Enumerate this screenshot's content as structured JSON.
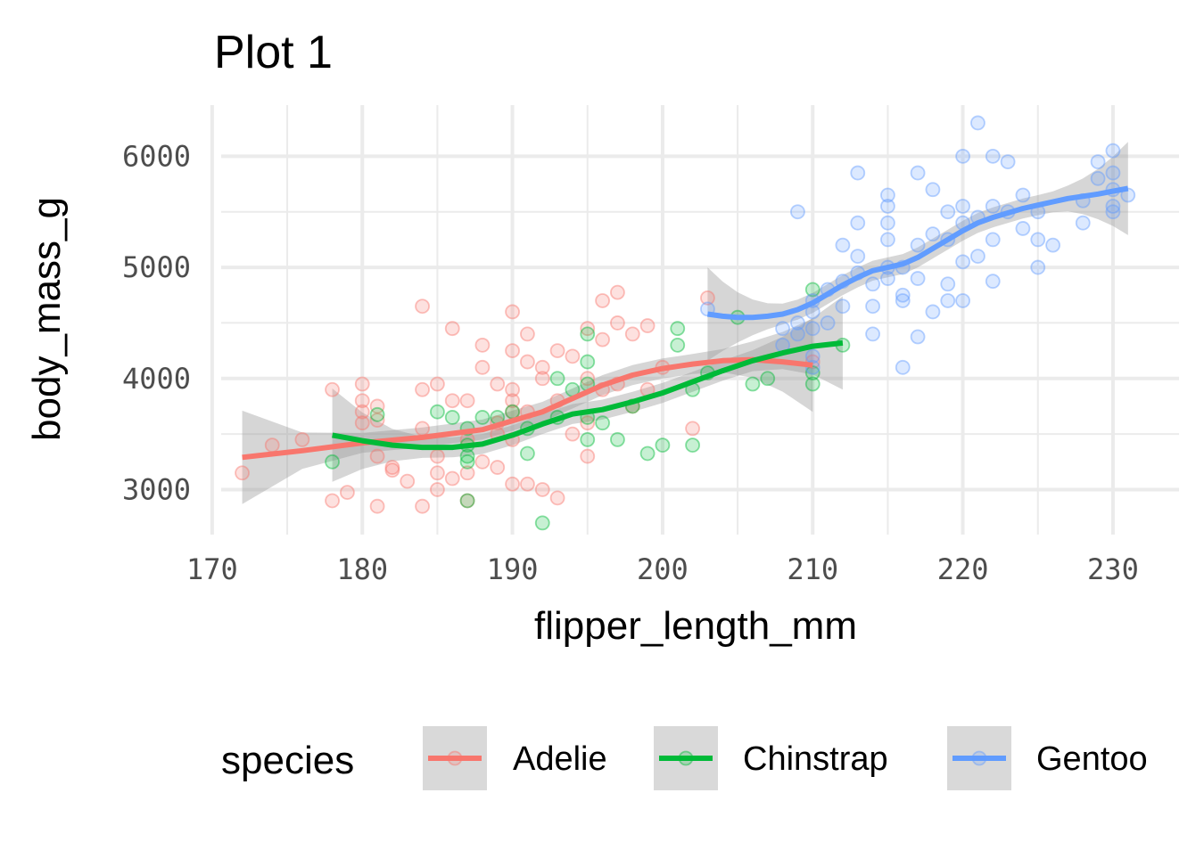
{
  "chart_data": {
    "type": "scatter",
    "title": "Plot 1",
    "xlabel": "flipper_length_mm",
    "ylabel": "body_mass_g",
    "xlim": [
      170.6,
      234.4
    ],
    "ylim": [
      2595,
      6460
    ],
    "x_ticks": [
      "170",
      "180",
      "190",
      "200",
      "210",
      "220",
      "230"
    ],
    "y_ticks": [
      "3000",
      "4000",
      "5000",
      "6000"
    ],
    "grid": true,
    "legend": {
      "title": "species",
      "position": "bottom"
    },
    "series": [
      {
        "name": "Adelie",
        "color": "#f8766d",
        "points": [
          [
            172,
            3150
          ],
          [
            174,
            3400
          ],
          [
            176,
            3450
          ],
          [
            178,
            3900
          ],
          [
            178,
            2900
          ],
          [
            179,
            2975
          ],
          [
            180,
            3950
          ],
          [
            180,
            3800
          ],
          [
            180,
            3600
          ],
          [
            180,
            3700
          ],
          [
            181,
            2850
          ],
          [
            181,
            3300
          ],
          [
            181,
            3625
          ],
          [
            181,
            3750
          ],
          [
            182,
            3200
          ],
          [
            182,
            3175
          ],
          [
            183,
            3075
          ],
          [
            184,
            4650
          ],
          [
            184,
            3900
          ],
          [
            184,
            3550
          ],
          [
            184,
            2850
          ],
          [
            185,
            3950
          ],
          [
            185,
            3300
          ],
          [
            185,
            3150
          ],
          [
            185,
            3000
          ],
          [
            186,
            4450
          ],
          [
            186,
            3800
          ],
          [
            186,
            3100
          ],
          [
            187,
            3800
          ],
          [
            187,
            3450
          ],
          [
            187,
            3150
          ],
          [
            187,
            2900
          ],
          [
            188,
            4300
          ],
          [
            188,
            4100
          ],
          [
            188,
            3250
          ],
          [
            189,
            3950
          ],
          [
            189,
            3600
          ],
          [
            189,
            3500
          ],
          [
            189,
            3200
          ],
          [
            190,
            4600
          ],
          [
            190,
            4250
          ],
          [
            190,
            3900
          ],
          [
            190,
            3800
          ],
          [
            190,
            3700
          ],
          [
            190,
            3450
          ],
          [
            190,
            3050
          ],
          [
            191,
            4400
          ],
          [
            191,
            4150
          ],
          [
            191,
            3700
          ],
          [
            191,
            3050
          ],
          [
            192,
            4100
          ],
          [
            192,
            4000
          ],
          [
            192,
            3000
          ],
          [
            193,
            4250
          ],
          [
            193,
            3800
          ],
          [
            193,
            2925
          ],
          [
            194,
            4200
          ],
          [
            194,
            3500
          ],
          [
            195,
            4450
          ],
          [
            195,
            4000
          ],
          [
            195,
            3600
          ],
          [
            195,
            3300
          ],
          [
            196,
            4700
          ],
          [
            196,
            4350
          ],
          [
            196,
            3900
          ],
          [
            197,
            4775
          ],
          [
            197,
            4500
          ],
          [
            197,
            3950
          ],
          [
            198,
            4400
          ],
          [
            198,
            3750
          ],
          [
            199,
            4475
          ],
          [
            199,
            3900
          ],
          [
            200,
            4100
          ],
          [
            202,
            3550
          ],
          [
            203,
            4725
          ],
          [
            210,
            4150
          ]
        ],
        "smooth": [
          [
            172,
            3290
          ],
          [
            176,
            3350
          ],
          [
            180,
            3420
          ],
          [
            184,
            3470
          ],
          [
            188,
            3540
          ],
          [
            190,
            3620
          ],
          [
            192,
            3700
          ],
          [
            194,
            3820
          ],
          [
            196,
            3940
          ],
          [
            198,
            4030
          ],
          [
            200,
            4090
          ],
          [
            202,
            4130
          ],
          [
            204,
            4160
          ],
          [
            206,
            4170
          ],
          [
            208,
            4150
          ],
          [
            210,
            4120
          ]
        ]
      },
      {
        "name": "Chinstrap",
        "color": "#00ba38",
        "points": [
          [
            178,
            3250
          ],
          [
            181,
            3675
          ],
          [
            185,
            3700
          ],
          [
            186,
            3650
          ],
          [
            187,
            3550
          ],
          [
            187,
            3400
          ],
          [
            187,
            3300
          ],
          [
            187,
            3250
          ],
          [
            187,
            2900
          ],
          [
            188,
            3650
          ],
          [
            189,
            3650
          ],
          [
            190,
            3700
          ],
          [
            191,
            3325
          ],
          [
            191,
            3550
          ],
          [
            192,
            2700
          ],
          [
            193,
            4000
          ],
          [
            193,
            3650
          ],
          [
            194,
            3900
          ],
          [
            195,
            4400
          ],
          [
            195,
            4150
          ],
          [
            195,
            3950
          ],
          [
            195,
            3650
          ],
          [
            195,
            3450
          ],
          [
            196,
            3600
          ],
          [
            197,
            3450
          ],
          [
            198,
            3750
          ],
          [
            199,
            3325
          ],
          [
            200,
            3400
          ],
          [
            201,
            4450
          ],
          [
            201,
            4300
          ],
          [
            202,
            3900
          ],
          [
            202,
            3400
          ],
          [
            203,
            4050
          ],
          [
            205,
            4550
          ],
          [
            206,
            3950
          ],
          [
            207,
            4000
          ],
          [
            210,
            4800
          ],
          [
            210,
            4050
          ],
          [
            210,
            3950
          ],
          [
            212,
            4300
          ]
        ],
        "smooth": [
          [
            178,
            3490
          ],
          [
            180,
            3440
          ],
          [
            182,
            3400
          ],
          [
            184,
            3380
          ],
          [
            186,
            3380
          ],
          [
            188,
            3410
          ],
          [
            190,
            3490
          ],
          [
            192,
            3590
          ],
          [
            194,
            3680
          ],
          [
            196,
            3720
          ],
          [
            198,
            3790
          ],
          [
            200,
            3870
          ],
          [
            202,
            3970
          ],
          [
            204,
            4070
          ],
          [
            206,
            4160
          ],
          [
            208,
            4230
          ],
          [
            210,
            4290
          ],
          [
            212,
            4320
          ]
        ]
      },
      {
        "name": "Gentoo",
        "color": "#619cff",
        "points": [
          [
            203,
            4625
          ],
          [
            208,
            4450
          ],
          [
            208,
            4300
          ],
          [
            209,
            4500
          ],
          [
            209,
            4400
          ],
          [
            209,
            5500
          ],
          [
            210,
            4700
          ],
          [
            210,
            4600
          ],
          [
            210,
            4450
          ],
          [
            210,
            4200
          ],
          [
            210,
            4100
          ],
          [
            211,
            4800
          ],
          [
            211,
            4500
          ],
          [
            212,
            5200
          ],
          [
            212,
            4875
          ],
          [
            212,
            4650
          ],
          [
            213,
            5850
          ],
          [
            213,
            5400
          ],
          [
            213,
            5100
          ],
          [
            213,
            4950
          ],
          [
            214,
            4650
          ],
          [
            214,
            4400
          ],
          [
            214,
            4850
          ],
          [
            215,
            5650
          ],
          [
            215,
            5550
          ],
          [
            215,
            5400
          ],
          [
            215,
            5000
          ],
          [
            215,
            4900
          ],
          [
            215,
            5250
          ],
          [
            216,
            5000
          ],
          [
            216,
            4750
          ],
          [
            216,
            4700
          ],
          [
            216,
            4100
          ],
          [
            217,
            5850
          ],
          [
            217,
            5200
          ],
          [
            217,
            4900
          ],
          [
            217,
            4375
          ],
          [
            218,
            5700
          ],
          [
            218,
            5300
          ],
          [
            218,
            4600
          ],
          [
            219,
            5500
          ],
          [
            219,
            5250
          ],
          [
            219,
            4850
          ],
          [
            219,
            4700
          ],
          [
            220,
            6000
          ],
          [
            220,
            5550
          ],
          [
            220,
            5400
          ],
          [
            220,
            5050
          ],
          [
            220,
            4700
          ],
          [
            221,
            6300
          ],
          [
            221,
            5450
          ],
          [
            221,
            5100
          ],
          [
            222,
            6000
          ],
          [
            222,
            5550
          ],
          [
            222,
            5250
          ],
          [
            222,
            4875
          ],
          [
            223,
            5950
          ],
          [
            223,
            5500
          ],
          [
            224,
            5650
          ],
          [
            224,
            5350
          ],
          [
            225,
            5500
          ],
          [
            225,
            5250
          ],
          [
            225,
            5000
          ],
          [
            226,
            5200
          ],
          [
            228,
            5600
          ],
          [
            228,
            5400
          ],
          [
            229,
            5950
          ],
          [
            229,
            5800
          ],
          [
            230,
            6050
          ],
          [
            230,
            5850
          ],
          [
            230,
            5700
          ],
          [
            230,
            5550
          ],
          [
            230,
            5500
          ],
          [
            231,
            5650
          ]
        ],
        "smooth": [
          [
            203,
            4580
          ],
          [
            204,
            4560
          ],
          [
            205,
            4550
          ],
          [
            206,
            4550
          ],
          [
            207,
            4560
          ],
          [
            208,
            4580
          ],
          [
            209,
            4620
          ],
          [
            210,
            4680
          ],
          [
            211,
            4760
          ],
          [
            212,
            4840
          ],
          [
            213,
            4910
          ],
          [
            214,
            4970
          ],
          [
            215,
            5000
          ],
          [
            216,
            5030
          ],
          [
            217,
            5090
          ],
          [
            218,
            5170
          ],
          [
            219,
            5250
          ],
          [
            220,
            5330
          ],
          [
            221,
            5400
          ],
          [
            222,
            5450
          ],
          [
            223,
            5490
          ],
          [
            224,
            5530
          ],
          [
            225,
            5560
          ],
          [
            226,
            5590
          ],
          [
            227,
            5620
          ],
          [
            228,
            5640
          ],
          [
            229,
            5660
          ],
          [
            230,
            5685
          ],
          [
            231,
            5710
          ]
        ]
      }
    ]
  }
}
